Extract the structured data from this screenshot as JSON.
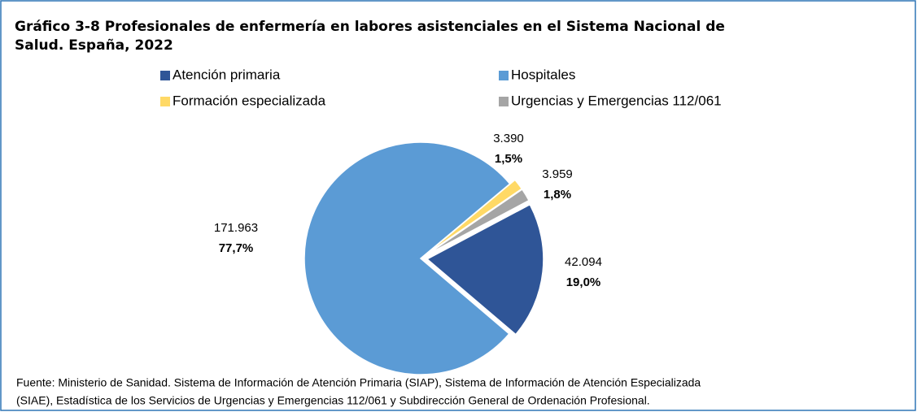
{
  "chart_data": {
    "type": "pie",
    "title": "Gráfico 3-8 Profesionales de enfermería en labores asistenciales en el Sistema Nacional de Salud. España, 2022",
    "title_lines": [
      "Gráfico 3-8 Profesionales de enfermería en labores asistenciales en el Sistema Nacional de",
      "Salud. España, 2022"
    ],
    "categories": [
      "Atención primaria",
      "Hospitales",
      "Formación especializada",
      "Urgencias y Emergencias 112/061"
    ],
    "colors": [
      "#2f5597",
      "#5b9bd5",
      "#ffd966",
      "#a5a5a5"
    ],
    "values": [
      42094,
      171963,
      3390,
      3959
    ],
    "value_labels": [
      "42.094",
      "171.963",
      "3.390",
      "3.959"
    ],
    "percentages": [
      19.0,
      77.7,
      1.5,
      1.8
    ],
    "percentage_labels": [
      "19,0%",
      "77,7%",
      "1,5%",
      "1,8%"
    ],
    "source_lines": [
      "Fuente: Ministerio de Sanidad. Sistema de Información de Atención Primaria (SIAP), Sistema de Información de Atención Especializada",
      "(SIAE), Estadística de los Servicios de Urgencias y Emergencias 112/061 y Subdirección General de Ordenación Profesional."
    ]
  }
}
